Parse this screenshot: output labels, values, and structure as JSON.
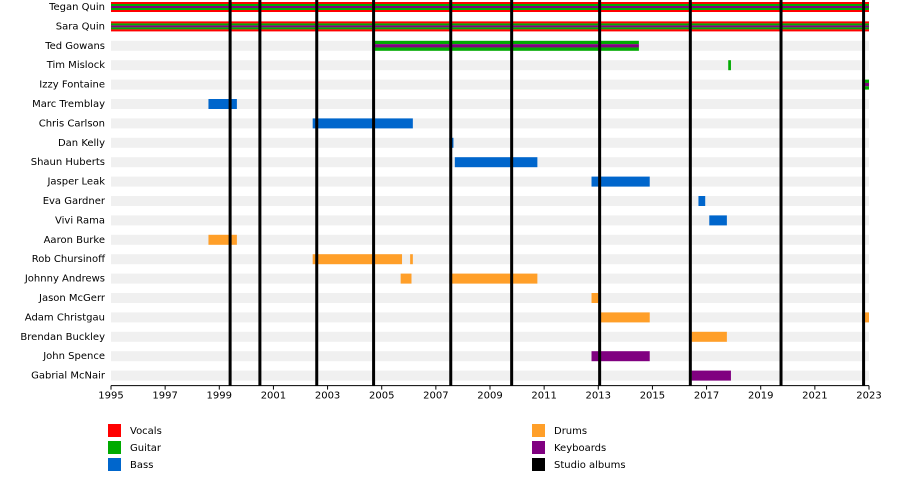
{
  "chart_data": {
    "type": "timeline",
    "xlim": [
      1995,
      2023
    ],
    "xticks": [
      1995,
      1997,
      1999,
      2001,
      2003,
      2005,
      2007,
      2009,
      2011,
      2013,
      2015,
      2017,
      2019,
      2021,
      2023
    ],
    "roles": [
      {
        "name": "Vocals",
        "color": "#ff0000"
      },
      {
        "name": "Guitar",
        "color": "#00aa00"
      },
      {
        "name": "Bass",
        "color": "#0066cc"
      },
      {
        "name": "Drums",
        "color": "#ff9f29"
      },
      {
        "name": "Keyboards",
        "color": "#800080"
      }
    ],
    "albums": {
      "name": "Studio albums",
      "color": "#000000",
      "values": [
        1999.4,
        2000.5,
        2002.6,
        2004.7,
        2007.55,
        2009.8,
        2013.05,
        2016.4,
        2019.75,
        2022.8
      ]
    },
    "members": [
      {
        "name": "Tegan Quin",
        "bars": [
          {
            "start": 1995,
            "end": 2023,
            "roles": [
              "Vocals",
              "Guitar",
              "Keyboards"
            ]
          }
        ]
      },
      {
        "name": "Sara Quin",
        "bars": [
          {
            "start": 1995,
            "end": 2023,
            "roles": [
              "Vocals",
              "Guitar",
              "Keyboards"
            ]
          }
        ]
      },
      {
        "name": "Ted Gowans",
        "bars": [
          {
            "start": 2004.7,
            "end": 2014.5,
            "roles": [
              "Guitar",
              "Keyboards"
            ]
          }
        ]
      },
      {
        "name": "Tim Mislock",
        "bars": [
          {
            "start": 2017.8,
            "end": 2017.9,
            "roles": [
              "Guitar"
            ]
          }
        ]
      },
      {
        "name": "Izzy Fontaine",
        "bars": [
          {
            "start": 2022.8,
            "end": 2023,
            "roles": [
              "Guitar",
              "Keyboards"
            ]
          }
        ]
      },
      {
        "name": "Marc Tremblay",
        "bars": [
          {
            "start": 1998.6,
            "end": 1999.65,
            "roles": [
              "Bass"
            ]
          }
        ]
      },
      {
        "name": "Chris Carlson",
        "bars": [
          {
            "start": 2002.45,
            "end": 2006.15,
            "roles": [
              "Bass"
            ]
          }
        ]
      },
      {
        "name": "Dan Kelly",
        "bars": [
          {
            "start": 2007.5,
            "end": 2007.65,
            "roles": [
              "Bass"
            ]
          }
        ]
      },
      {
        "name": "Shaun Huberts",
        "bars": [
          {
            "start": 2007.7,
            "end": 2010.75,
            "roles": [
              "Bass"
            ]
          }
        ]
      },
      {
        "name": "Jasper Leak",
        "bars": [
          {
            "start": 2012.75,
            "end": 2014.9,
            "roles": [
              "Bass"
            ]
          }
        ]
      },
      {
        "name": "Eva Gardner",
        "bars": [
          {
            "start": 2016.7,
            "end": 2016.95,
            "roles": [
              "Bass"
            ]
          }
        ]
      },
      {
        "name": "Vivi Rama",
        "bars": [
          {
            "start": 2017.1,
            "end": 2017.75,
            "roles": [
              "Bass"
            ]
          }
        ]
      },
      {
        "name": "Aaron Burke",
        "bars": [
          {
            "start": 1998.6,
            "end": 1999.65,
            "roles": [
              "Drums"
            ]
          }
        ]
      },
      {
        "name": "Rob Chursinoff",
        "bars": [
          {
            "start": 2002.45,
            "end": 2005.75,
            "roles": [
              "Drums"
            ]
          },
          {
            "start": 2006.05,
            "end": 2006.15,
            "roles": [
              "Drums"
            ]
          }
        ]
      },
      {
        "name": "Johnny Andrews",
        "bars": [
          {
            "start": 2005.7,
            "end": 2006.1,
            "roles": [
              "Drums"
            ]
          },
          {
            "start": 2007.5,
            "end": 2010.75,
            "roles": [
              "Drums"
            ]
          }
        ]
      },
      {
        "name": "Jason McGerr",
        "bars": [
          {
            "start": 2012.75,
            "end": 2013.0,
            "roles": [
              "Drums"
            ]
          }
        ]
      },
      {
        "name": "Adam Christgau",
        "bars": [
          {
            "start": 2013.05,
            "end": 2014.9,
            "roles": [
              "Drums"
            ]
          },
          {
            "start": 2022.75,
            "end": 2023,
            "roles": [
              "Drums"
            ]
          }
        ]
      },
      {
        "name": "Brendan Buckley",
        "bars": [
          {
            "start": 2016.45,
            "end": 2017.75,
            "roles": [
              "Drums"
            ]
          }
        ]
      },
      {
        "name": "John Spence",
        "bars": [
          {
            "start": 2012.75,
            "end": 2014.9,
            "roles": [
              "Keyboards"
            ]
          }
        ]
      },
      {
        "name": "Gabrial McNair",
        "bars": [
          {
            "start": 2016.45,
            "end": 2017.9,
            "roles": [
              "Keyboards"
            ]
          }
        ]
      }
    ]
  }
}
